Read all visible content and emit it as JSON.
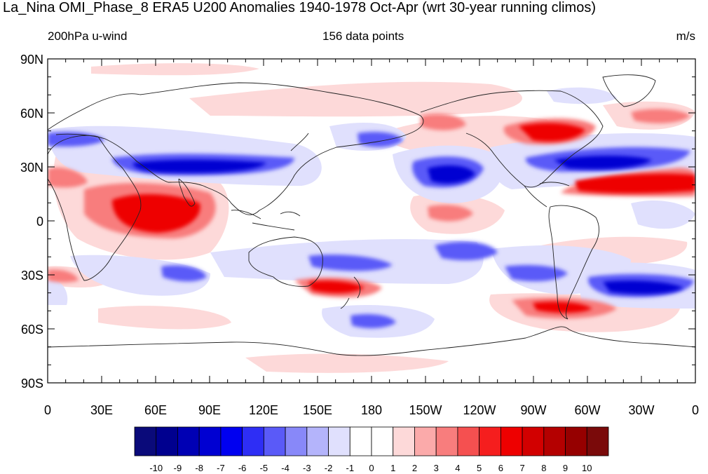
{
  "header": {
    "title": "La_Nina OMI_Phase_8 ERA5 U200 Anomalies 1940-1978 Oct-Apr (wrt 30-year running climos)",
    "left_subtitle": "200hPa u-wind",
    "center_subtitle": "156 data points",
    "right_subtitle": "m/s"
  },
  "axes": {
    "lat_labels": [
      "90N",
      "60N",
      "30N",
      "0",
      "30S",
      "60S",
      "90S"
    ],
    "lon_labels": [
      "0",
      "30E",
      "60E",
      "90E",
      "120E",
      "150E",
      "180",
      "150W",
      "120W",
      "90W",
      "60W",
      "30W",
      "0"
    ]
  },
  "colorbar": {
    "levels": [
      "-10",
      "-9",
      "-8",
      "-7",
      "-6",
      "-5",
      "-4",
      "-3",
      "-2",
      "-1",
      "0",
      "1",
      "2",
      "3",
      "4",
      "5",
      "6",
      "7",
      "8",
      "9",
      "10"
    ],
    "colors": [
      "#0a0a7a",
      "#00008f",
      "#0000b4",
      "#0000d2",
      "#0000f0",
      "#2e2ef5",
      "#5a5af8",
      "#8888f9",
      "#b4b4fb",
      "#e0e0fd",
      "#ffffff",
      "#ffffff",
      "#fdd9d9",
      "#fbaaaa",
      "#f87d7d",
      "#f55050",
      "#f51e1e",
      "#ee0000",
      "#d20000",
      "#b40000",
      "#960000",
      "#7a0a0a"
    ]
  },
  "map": {
    "region": "global",
    "projection": "cylindrical equidistant, 0-360 longitude",
    "field": "200hPa u-wind anomaly",
    "anomaly_regions": [
      {
        "sign": "negative",
        "place": "subtropical jet over Middle East to Japan"
      },
      {
        "sign": "negative",
        "place": "eastern North Pacific"
      },
      {
        "sign": "negative",
        "place": "North Atlantic"
      },
      {
        "sign": "negative",
        "place": "South Atlantic"
      },
      {
        "sign": "negative",
        "place": "South Pacific"
      },
      {
        "sign": "positive",
        "place": "Africa and Indian Ocean"
      },
      {
        "sign": "positive",
        "place": "tropical Atlantic"
      },
      {
        "sign": "positive",
        "place": "North America east coast"
      },
      {
        "sign": "positive",
        "place": "New Zealand"
      },
      {
        "sign": "positive",
        "place": "South Pacific near South America"
      }
    ]
  }
}
